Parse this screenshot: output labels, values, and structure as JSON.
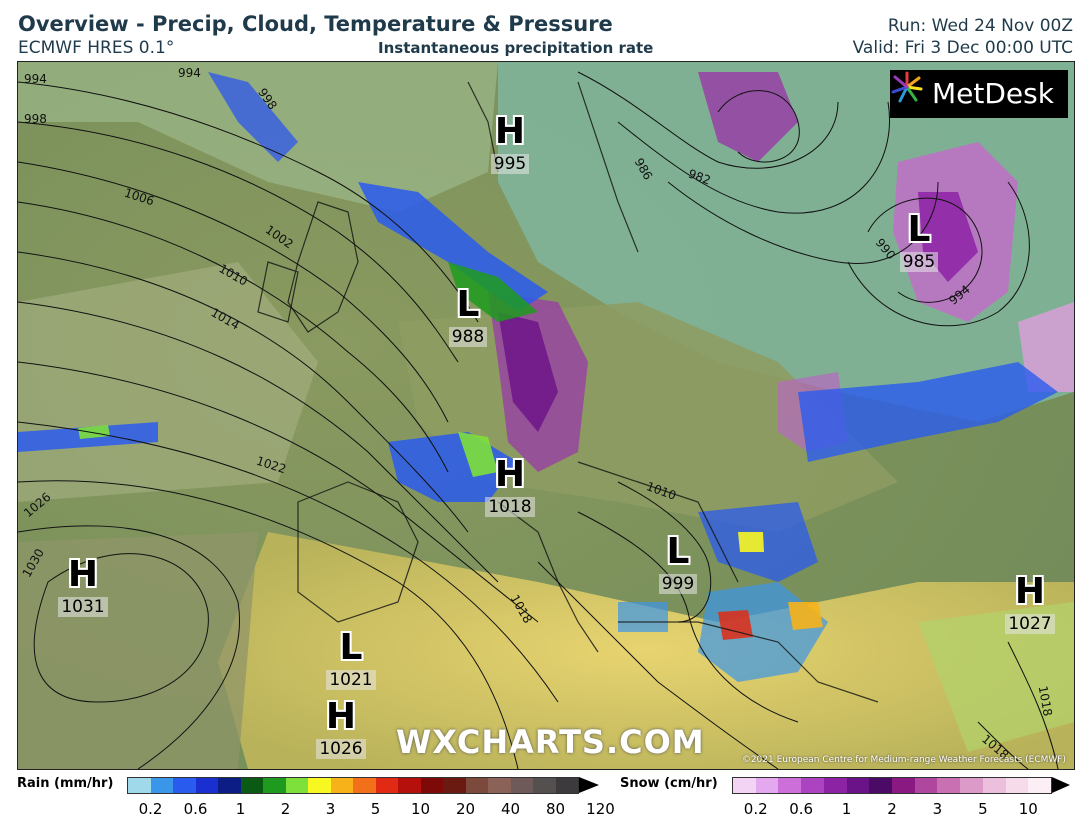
{
  "header": {
    "title": "Overview - Precip, Cloud, Temperature & Pressure",
    "model": "ECMWF HRES 0.1°",
    "product": "Instantaneous precipitation rate",
    "run": "Run: Wed 24 Nov 00Z",
    "valid": "Valid: Fri 3 Dec 00:00 UTC"
  },
  "branding": {
    "logo_text": "MetDesk",
    "watermark": "WXCHARTS.COM",
    "copyright": "©2021 European Centre for Medium-range Weather Forecasts (ECMWF)"
  },
  "pressure_centers": [
    {
      "type": "H",
      "value": "995"
    },
    {
      "type": "L",
      "value": "985"
    },
    {
      "type": "L",
      "value": "988"
    },
    {
      "type": "H",
      "value": "1018"
    },
    {
      "type": "L",
      "value": "999"
    },
    {
      "type": "H",
      "value": "1031"
    },
    {
      "type": "H",
      "value": "1027"
    },
    {
      "type": "L",
      "value": "1021"
    },
    {
      "type": "H",
      "value": "1026"
    }
  ],
  "isobar_labels": [
    "994",
    "994",
    "998",
    "998",
    "1006",
    "1002",
    "1010",
    "1014",
    "1022",
    "1026",
    "1030",
    "986",
    "982",
    "990",
    "994",
    "1010",
    "1018",
    "1018",
    "1018"
  ],
  "legend": {
    "rain": {
      "title": "Rain (mm/hr)",
      "ticks": [
        "0.2",
        "0.6",
        "1",
        "2",
        "3",
        "5",
        "10",
        "20",
        "40",
        "80",
        "120"
      ],
      "colors": [
        "#9fd9ea",
        "#3a96e8",
        "#2a5bef",
        "#1a2fcf",
        "#0d1d86",
        "#0b5a14",
        "#1e9b1e",
        "#7ee03a",
        "#f7f722",
        "#f7b21a",
        "#f2701a",
        "#e02a14",
        "#b5100c",
        "#7e0a08",
        "#6a1a10",
        "#7c4a3c",
        "#8a6258",
        "#6e5a58",
        "#545050",
        "#3c3a3c"
      ]
    },
    "snow": {
      "title": "Snow (cm/hr)",
      "ticks": [
        "0.2",
        "0.6",
        "1",
        "2",
        "3",
        "5",
        "10"
      ],
      "colors": [
        "#f4d4f4",
        "#e4a8ee",
        "#cc6fd8",
        "#ac44c2",
        "#8c22a4",
        "#6a1288",
        "#4a0a66",
        "#8a1a82",
        "#b0479e",
        "#c870b2",
        "#dc9ac8",
        "#ecc0dc",
        "#f6dceb",
        "#fbeef5"
      ]
    }
  }
}
